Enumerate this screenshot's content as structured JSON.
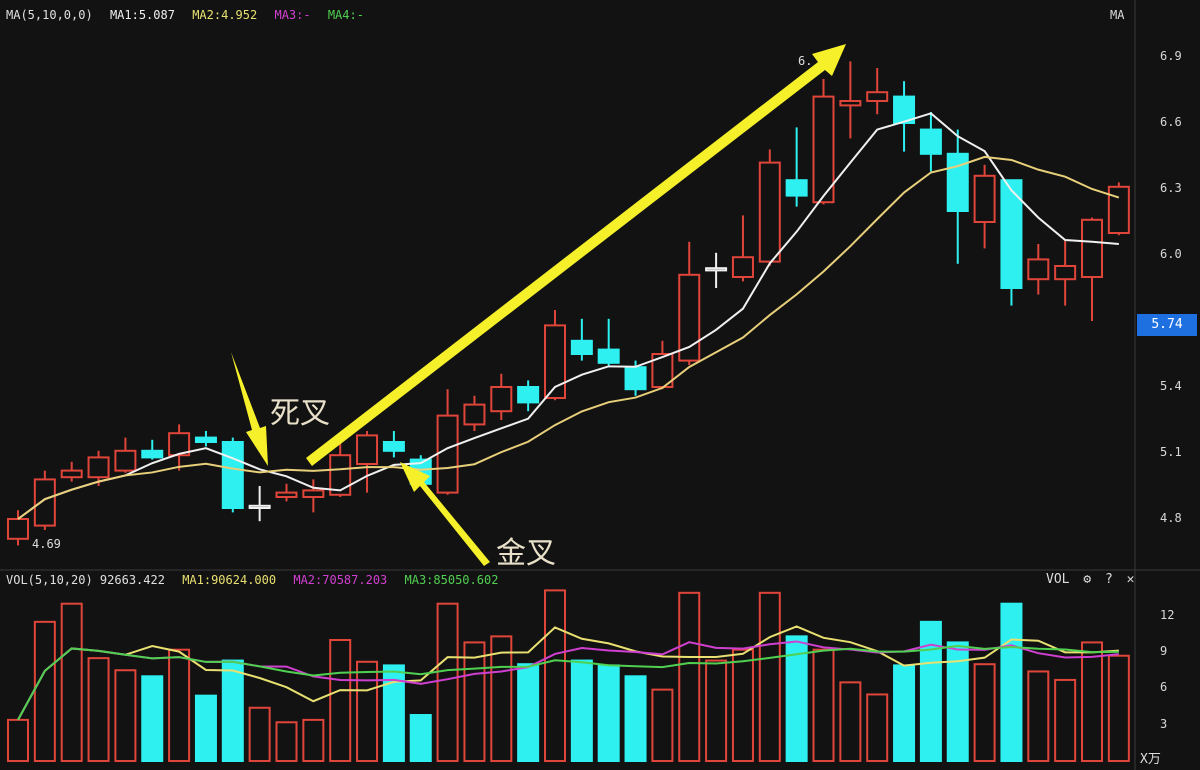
{
  "price_header": {
    "ma_label": "MA(5,10,0,0)",
    "ma1": "MA1:5.087",
    "ma2": "MA2:4.952",
    "ma3": "MA3:-",
    "ma4": "MA4:-",
    "right_label": "MA"
  },
  "volume_header": {
    "vol_label": "VOL(5,10,20) 92663.422",
    "ma1": "MA1:90624.000",
    "ma2": "MA2:70587.203",
    "ma3": "MA3:85050.602",
    "right_label": "VOL",
    "settings_icon": "gear-icon",
    "help_label": "?",
    "close_label": "✕"
  },
  "annotations": {
    "death_cross": "死叉",
    "golden_cross": "金叉",
    "low_label": "4.69",
    "high_label": "6."
  },
  "colors": {
    "up": "#e0453a",
    "down": "#2ef0f0",
    "ma5": "#f0f0f0",
    "ma10": "#e8cf7a",
    "vol_ma5": "#e8e070",
    "vol_ma10": "#d040d0",
    "vol_ma20": "#50d050",
    "arrow": "#f5f02a",
    "last_price_bg": "#1e6fe0"
  },
  "chart_data": [
    {
      "type": "candlestick",
      "title": "",
      "price_axis": {
        "ticks": [
          "6.9",
          "6.6",
          "6.3",
          "6.0",
          "5.4",
          "5.1",
          "4.8"
        ],
        "range": [
          4.62,
          7.0
        ]
      },
      "last_price": "5.74",
      "series": {
        "open": [
          4.71,
          4.77,
          4.99,
          4.99,
          5.02,
          5.11,
          5.09,
          5.17,
          5.15,
          4.85,
          4.9,
          4.9,
          4.91,
          5.05,
          5.15,
          5.07,
          4.92,
          5.23,
          5.29,
          5.4,
          5.35,
          5.61,
          5.57,
          5.49,
          5.4,
          5.52,
          5.93,
          5.9,
          5.97,
          6.34,
          6.24,
          6.68,
          6.7,
          6.72,
          6.57,
          6.46,
          6.15,
          6.34,
          5.89,
          5.89,
          5.9,
          6.1
        ],
        "close": [
          4.8,
          4.98,
          5.02,
          5.08,
          5.11,
          5.08,
          5.19,
          5.15,
          4.85,
          4.86,
          4.92,
          4.93,
          5.09,
          5.18,
          5.11,
          4.96,
          5.27,
          5.32,
          5.4,
          5.33,
          5.68,
          5.55,
          5.51,
          5.39,
          5.55,
          5.91,
          5.94,
          5.99,
          6.42,
          6.27,
          6.72,
          6.7,
          6.74,
          6.6,
          6.46,
          6.2,
          6.36,
          5.85,
          5.98,
          5.95,
          6.16,
          6.31
        ],
        "high": [
          4.84,
          5.02,
          5.06,
          5.11,
          5.17,
          5.16,
          5.23,
          5.2,
          5.17,
          4.95,
          4.96,
          4.98,
          5.16,
          5.2,
          5.2,
          5.09,
          5.39,
          5.36,
          5.46,
          5.43,
          5.75,
          5.71,
          5.71,
          5.52,
          5.61,
          6.06,
          6.01,
          6.18,
          6.48,
          6.58,
          6.8,
          6.88,
          6.85,
          6.79,
          6.65,
          6.57,
          6.41,
          6.34,
          6.05,
          6.07,
          6.17,
          6.33
        ],
        "low": [
          4.68,
          4.75,
          4.97,
          4.95,
          5.01,
          5.07,
          5.02,
          5.13,
          4.83,
          4.79,
          4.88,
          4.83,
          4.9,
          4.92,
          5.08,
          4.95,
          4.91,
          5.2,
          5.25,
          5.29,
          5.34,
          5.52,
          5.49,
          5.36,
          5.39,
          5.5,
          5.85,
          5.88,
          5.95,
          6.22,
          6.23,
          6.53,
          6.64,
          6.47,
          6.38,
          5.96,
          6.03,
          5.77,
          5.82,
          5.77,
          5.7,
          6.09
        ]
      },
      "moving_averages": [
        "MA5",
        "MA10"
      ]
    },
    {
      "type": "bar",
      "title": "",
      "unit": "X万",
      "y_ticks": [
        "12",
        "9",
        "6",
        "3"
      ],
      "ylim": [
        0,
        15
      ],
      "values": [
        3.4,
        11.5,
        13.0,
        8.5,
        7.5,
        7.0,
        9.2,
        5.4,
        8.3,
        4.4,
        3.2,
        3.4,
        10.0,
        8.2,
        7.9,
        3.8,
        13.0,
        9.8,
        10.3,
        8.0,
        14.1,
        8.3,
        7.9,
        7.0,
        5.9,
        13.9,
        8.3,
        9.2,
        13.9,
        10.3,
        9.2,
        6.5,
        5.5,
        7.9,
        11.5,
        9.8,
        8.0,
        13.0,
        7.4,
        6.7,
        9.8,
        8.7
      ],
      "moving_averages": [
        "MA5",
        "MA10",
        "MA20"
      ]
    }
  ]
}
